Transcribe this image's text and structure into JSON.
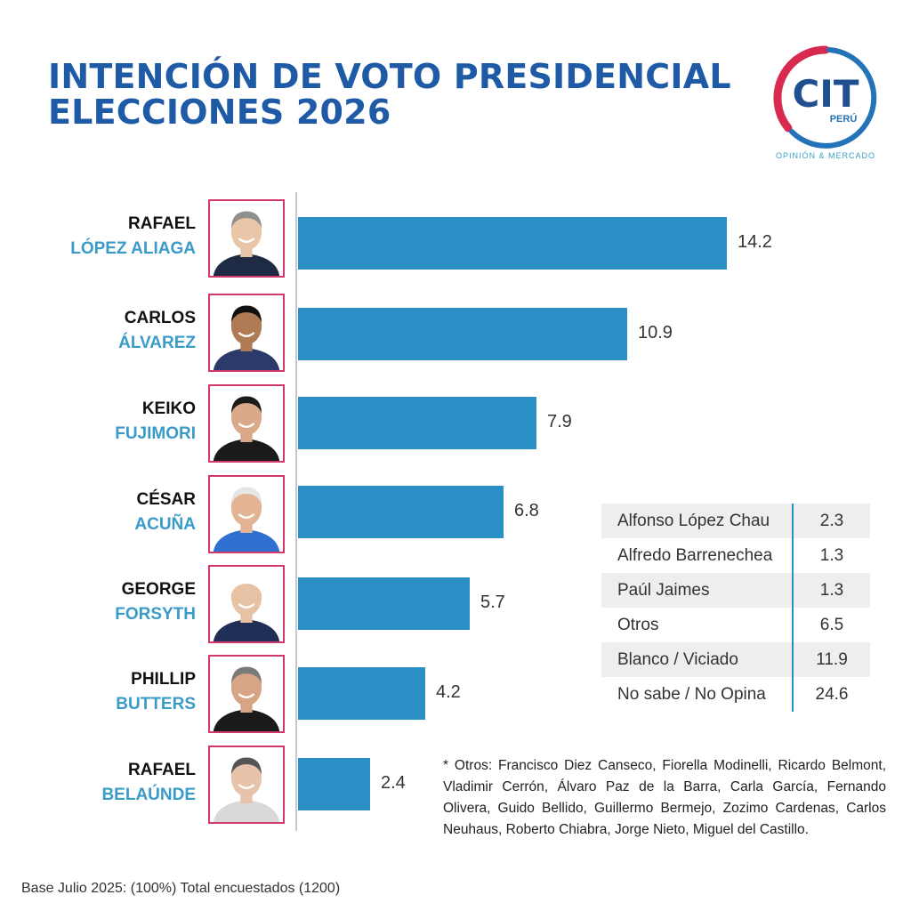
{
  "title": {
    "line1": "INTENCIÓN DE VOTO PRESIDENCIAL",
    "line2": "ELECCIONES 2026"
  },
  "logo": {
    "text": "CIT",
    "country": "PERÚ",
    "tagline": "OPINIÓN & MERCADO",
    "colors": {
      "red": "#d8294e",
      "blue": "#2472b8"
    }
  },
  "chart_data": {
    "type": "bar",
    "orientation": "horizontal",
    "categories": [
      {
        "first": "RAFAEL",
        "last": "LÓPEZ ALIAGA",
        "value_label": "14.2"
      },
      {
        "first": "CARLOS",
        "last": "ÁLVAREZ",
        "value_label": "10.9"
      },
      {
        "first": "KEIKO",
        "last": "FUJIMORI",
        "value_label": "7.9"
      },
      {
        "first": "CÉSAR",
        "last": "ACUÑA",
        "value_label": "6.8"
      },
      {
        "first": "GEORGE",
        "last": "FORSYTH",
        "value_label": "5.7"
      },
      {
        "first": "PHILLIP",
        "last": "BUTTERS",
        "value_label": "4.2"
      },
      {
        "first": "RAFAEL",
        "last": "BELAÚNDE",
        "value_label": "2.4"
      }
    ],
    "values": [
      14.2,
      10.9,
      7.9,
      6.8,
      5.7,
      4.2,
      2.4
    ],
    "xlim": [
      0,
      16
    ],
    "bar_color": "#2a8fc4",
    "photo_border_color": "#d2386b",
    "grid": false
  },
  "other_results": [
    {
      "label": "Alfonso López Chau",
      "value": "2.3"
    },
    {
      "label": "Alfredo Barrenechea",
      "value": "1.3"
    },
    {
      "label": "Paúl Jaimes",
      "value": "1.3"
    },
    {
      "label": "Otros",
      "value": "6.5"
    },
    {
      "label": "Blanco / Viciado",
      "value": "11.9"
    },
    {
      "label": "No sabe / No Opina",
      "value": "24.6"
    }
  ],
  "footnote": "* Otros: Francisco Diez Canseco, Fiorella Modinelli, Ricardo Belmont, Vladimir Cerrón, Álvaro Paz de la Barra, Carla García, Fernando Olivera, Guido Bellido, Guillermo Bermejo, Zozimo Cardenas, Carlos Neuhaus, Roberto Chiabra, Jorge Nieto, Miguel del Castillo.",
  "base_note": "Base Julio 2025: (100%) Total encuestados (1200)"
}
